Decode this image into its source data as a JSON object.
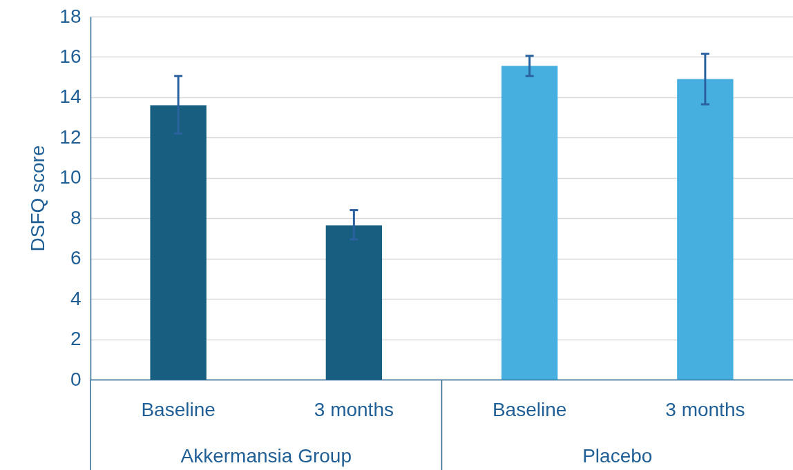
{
  "chart_data": {
    "type": "bar",
    "ylabel": "DSFQ score",
    "categories": [
      "Baseline",
      "3 months",
      "Baseline",
      "3 months"
    ],
    "values": [
      13.6,
      7.65,
      15.55,
      14.9
    ],
    "colors": [
      "#175e80",
      "#175e80",
      "#47aee0",
      "#47aee0"
    ],
    "errors": [
      [
        12.2,
        15.05
      ],
      [
        6.95,
        8.4
      ],
      [
        15.05,
        16.05
      ],
      [
        13.65,
        16.15
      ]
    ],
    "ylim": [
      0,
      18
    ],
    "yticks": [
      0,
      2,
      4,
      6,
      8,
      10,
      12,
      14,
      16,
      18
    ],
    "grid": "y",
    "annotations": [
      "Akkermansia Group",
      "Placebo"
    ]
  }
}
